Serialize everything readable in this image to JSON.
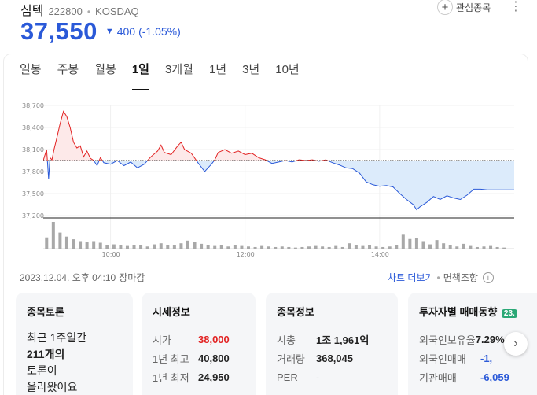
{
  "header": {
    "name": "심텍",
    "code": "222800",
    "separator": "•",
    "market": "KOSDAQ",
    "watch_label": "관심종목",
    "more_icon": "ellipsis-vertical-icon"
  },
  "quote": {
    "price": "37,550",
    "arrow": "▼",
    "change": "400",
    "change_pct": "(-1.05%)"
  },
  "tabs": [
    "일봉",
    "주봉",
    "월봉",
    "1일",
    "3개월",
    "1년",
    "3년",
    "10년"
  ],
  "active_tab": "1일",
  "chart_data": {
    "type": "area",
    "y_ticks": [
      "38,700",
      "38,400",
      "38,100",
      "37,800",
      "37,500",
      "37,200"
    ],
    "x_ticks": [
      "10:00",
      "12:00",
      "14:00"
    ],
    "prev_close": 37950,
    "ylim": [
      37200,
      38700
    ],
    "series": [
      {
        "values": [
          [
            9.0,
            37950
          ],
          [
            9.05,
            38100
          ],
          [
            9.08,
            37700
          ],
          [
            9.1,
            37990
          ],
          [
            9.13,
            37960
          ],
          [
            9.16,
            38100
          ],
          [
            9.2,
            38250
          ],
          [
            9.25,
            38450
          ],
          [
            9.3,
            38620
          ],
          [
            9.35,
            38550
          ],
          [
            9.4,
            38400
          ],
          [
            9.45,
            38200
          ],
          [
            9.5,
            38120
          ],
          [
            9.55,
            38150
          ],
          [
            9.6,
            38000
          ],
          [
            9.65,
            38080
          ],
          [
            9.7,
            37980
          ],
          [
            9.75,
            37950
          ],
          [
            9.8,
            37880
          ],
          [
            9.85,
            37990
          ],
          [
            9.9,
            37920
          ],
          [
            10.0,
            37900
          ],
          [
            10.1,
            37950
          ],
          [
            10.2,
            37880
          ],
          [
            10.3,
            37930
          ],
          [
            10.4,
            37850
          ],
          [
            10.5,
            37900
          ],
          [
            10.6,
            38000
          ],
          [
            10.7,
            38080
          ],
          [
            10.75,
            38160
          ],
          [
            10.8,
            38060
          ],
          [
            10.9,
            38030
          ],
          [
            11.0,
            38150
          ],
          [
            11.05,
            38200
          ],
          [
            11.1,
            38100
          ],
          [
            11.2,
            38050
          ],
          [
            11.3,
            37920
          ],
          [
            11.35,
            37860
          ],
          [
            11.4,
            37800
          ],
          [
            11.45,
            37850
          ],
          [
            11.5,
            37900
          ],
          [
            11.55,
            37960
          ],
          [
            11.6,
            38060
          ],
          [
            11.7,
            38100
          ],
          [
            11.8,
            38050
          ],
          [
            11.9,
            38080
          ],
          [
            12.0,
            38030
          ],
          [
            12.1,
            38050
          ],
          [
            12.2,
            37990
          ],
          [
            12.3,
            37960
          ],
          [
            12.4,
            37910
          ],
          [
            12.5,
            37930
          ],
          [
            12.6,
            37950
          ],
          [
            12.7,
            37930
          ],
          [
            12.8,
            37960
          ],
          [
            12.9,
            37950
          ],
          [
            13.0,
            37960
          ],
          [
            13.1,
            37940
          ],
          [
            13.2,
            37960
          ],
          [
            13.3,
            37920
          ],
          [
            13.4,
            37890
          ],
          [
            13.5,
            37850
          ],
          [
            13.6,
            37840
          ],
          [
            13.7,
            37780
          ],
          [
            13.8,
            37660
          ],
          [
            13.9,
            37620
          ],
          [
            14.0,
            37600
          ],
          [
            14.1,
            37610
          ],
          [
            14.2,
            37590
          ],
          [
            14.3,
            37500
          ],
          [
            14.4,
            37420
          ],
          [
            14.5,
            37350
          ],
          [
            14.55,
            37280
          ],
          [
            14.6,
            37320
          ],
          [
            14.7,
            37380
          ],
          [
            14.8,
            37460
          ],
          [
            14.9,
            37420
          ],
          [
            15.0,
            37470
          ],
          [
            15.1,
            37440
          ],
          [
            15.2,
            37420
          ],
          [
            15.3,
            37480
          ],
          [
            15.4,
            37560
          ],
          [
            15.5,
            37560
          ],
          [
            15.6,
            37550
          ],
          [
            15.7,
            37550
          ],
          [
            15.8,
            37550
          ],
          [
            16.0,
            37550
          ]
        ]
      }
    ],
    "volume": [
      [
        9.05,
        42
      ],
      [
        9.15,
        100
      ],
      [
        9.25,
        60
      ],
      [
        9.35,
        45
      ],
      [
        9.45,
        35
      ],
      [
        9.55,
        28
      ],
      [
        9.65,
        24
      ],
      [
        9.75,
        28
      ],
      [
        9.85,
        22
      ],
      [
        9.95,
        12
      ],
      [
        10.05,
        16
      ],
      [
        10.15,
        12
      ],
      [
        10.25,
        10
      ],
      [
        10.35,
        14
      ],
      [
        10.45,
        12
      ],
      [
        10.55,
        8
      ],
      [
        10.65,
        16
      ],
      [
        10.75,
        20
      ],
      [
        10.85,
        12
      ],
      [
        10.95,
        14
      ],
      [
        11.05,
        20
      ],
      [
        11.15,
        30
      ],
      [
        11.25,
        24
      ],
      [
        11.35,
        18
      ],
      [
        11.45,
        14
      ],
      [
        11.55,
        10
      ],
      [
        11.65,
        12
      ],
      [
        11.75,
        8
      ],
      [
        11.85,
        12
      ],
      [
        11.95,
        10
      ],
      [
        12.05,
        8
      ],
      [
        12.15,
        6
      ],
      [
        12.25,
        10
      ],
      [
        12.35,
        8
      ],
      [
        12.45,
        6
      ],
      [
        12.55,
        8
      ],
      [
        12.65,
        6
      ],
      [
        12.75,
        4
      ],
      [
        12.85,
        6
      ],
      [
        12.95,
        8
      ],
      [
        13.05,
        10
      ],
      [
        13.15,
        8
      ],
      [
        13.25,
        6
      ],
      [
        13.35,
        10
      ],
      [
        13.45,
        6
      ],
      [
        13.55,
        20
      ],
      [
        13.65,
        14
      ],
      [
        13.75,
        10
      ],
      [
        13.85,
        12
      ],
      [
        13.95,
        8
      ],
      [
        14.05,
        6
      ],
      [
        14.15,
        8
      ],
      [
        14.25,
        12
      ],
      [
        14.35,
        52
      ],
      [
        14.45,
        36
      ],
      [
        14.55,
        40
      ],
      [
        14.65,
        28
      ],
      [
        14.75,
        16
      ],
      [
        14.85,
        32
      ],
      [
        14.95,
        20
      ],
      [
        15.05,
        12
      ],
      [
        15.15,
        8
      ],
      [
        15.25,
        18
      ],
      [
        15.35,
        10
      ],
      [
        15.45,
        6
      ],
      [
        15.55,
        8
      ],
      [
        15.65,
        10
      ],
      [
        15.75,
        6
      ],
      [
        15.85,
        4
      ]
    ],
    "colors": {
      "up": "#e22222",
      "down": "#2a59d8",
      "up_fill": "#fde9e9",
      "down_fill": "#dcebfb",
      "volume": "#a8a8a8"
    }
  },
  "footer": {
    "timestamp": "2023.12.04. 오후 04:10",
    "status": "장마감",
    "chart_more": "차트 더보기",
    "dot": "•",
    "disclaimer": "면책조항",
    "info_icon": "info-circle-icon"
  },
  "cards": {
    "discussion": {
      "title": "종목토론",
      "lines": [
        "최근 1주일간",
        "211개의",
        "토론이",
        "올라왔어요"
      ]
    },
    "market_info": {
      "title": "시세정보",
      "rows": [
        {
          "label": "시가",
          "value": "38,000"
        },
        {
          "label": "1년 최고",
          "value": "40,800"
        },
        {
          "label": "1년 최저",
          "value": "24,950"
        }
      ]
    },
    "stock_info": {
      "title": "종목정보",
      "rows": [
        {
          "label": "시총",
          "value": "1조 1,961억"
        },
        {
          "label": "거래량",
          "value": "368,045"
        },
        {
          "label": "PER",
          "value": "-"
        }
      ]
    },
    "investor": {
      "title": "투자자별 매매동향",
      "badge": "23.",
      "rows": [
        {
          "label": "외국인보유율",
          "value": "7.29%"
        },
        {
          "label": "외국인매매",
          "value": "-1,"
        },
        {
          "label": "기관매매",
          "value": "-6,059"
        }
      ]
    }
  },
  "next_icon": "chevron-right-icon"
}
